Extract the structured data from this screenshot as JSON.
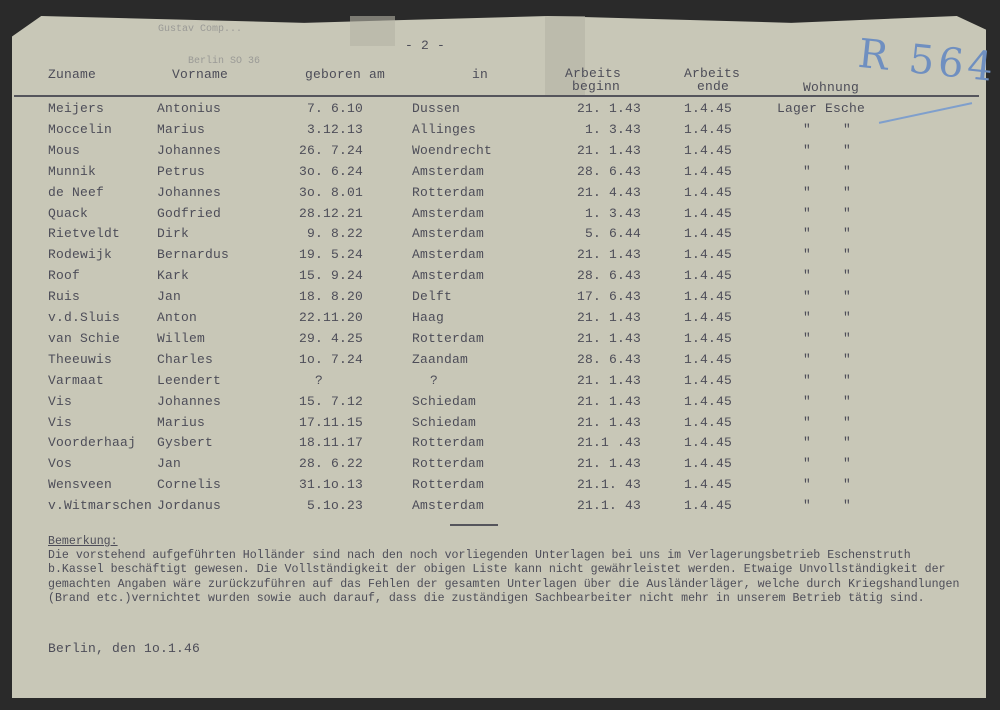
{
  "letterhead_stamp": {
    "line1": "Gustav Comp...",
    "line2": "Berlin SO 36"
  },
  "page_number": "- 2 -",
  "handwritten_ref": "R 564",
  "headers": {
    "surname": "Zuname",
    "firstname": "Vorname",
    "born": "geboren am",
    "in": "in",
    "work_begin_1": "Arbeits",
    "work_begin_2": "beginn",
    "work_end_1": "Arbeits",
    "work_end_2": "ende",
    "residence": "Wohnung"
  },
  "rows": [
    {
      "surname": "Meijers",
      "firstname": "Antonius",
      "born": "7. 6.10",
      "place": "Dussen",
      "begin": "21. 1.43",
      "end": "1.4.45",
      "residence": "Lager Esche"
    },
    {
      "surname": "Moccelin",
      "firstname": "Marius",
      "born": "3.12.13",
      "place": "Allinges",
      "begin": "1. 3.43",
      "end": "1.4.45",
      "residence": "\"    \""
    },
    {
      "surname": "Mous",
      "firstname": "Johannes",
      "born": "26. 7.24",
      "place": "Woendrecht",
      "begin": "21. 1.43",
      "end": "1.4.45",
      "residence": "\"    \""
    },
    {
      "surname": "Munnik",
      "firstname": "Petrus",
      "born": "3o. 6.24",
      "place": "Amsterdam",
      "begin": "28. 6.43",
      "end": "1.4.45",
      "residence": "\"    \""
    },
    {
      "surname": "de Neef",
      "firstname": "Johannes",
      "born": "3o. 8.01",
      "place": "Rotterdam",
      "begin": "21. 4.43",
      "end": "1.4.45",
      "residence": "\"    \""
    },
    {
      "surname": "Quack",
      "firstname": "Godfried",
      "born": "28.12.21",
      "place": "Amsterdam",
      "begin": "1. 3.43",
      "end": "1.4.45",
      "residence": "\"    \""
    },
    {
      "surname": "Rietveldt",
      "firstname": "Dirk",
      "born": "9. 8.22",
      "place": "Amsterdam",
      "begin": "5. 6.44",
      "end": "1.4.45",
      "residence": "\"    \""
    },
    {
      "surname": "Rodewijk",
      "firstname": "Bernardus",
      "born": "19. 5.24",
      "place": "Amsterdam",
      "begin": "21. 1.43",
      "end": "1.4.45",
      "residence": "\"    \""
    },
    {
      "surname": "Roof",
      "firstname": "Kark",
      "born": "15. 9.24",
      "place": "Amsterdam",
      "begin": "28. 6.43",
      "end": "1.4.45",
      "residence": "\"    \""
    },
    {
      "surname": "Ruis",
      "firstname": "Jan",
      "born": "18. 8.20",
      "place": "Delft",
      "begin": "17. 6.43",
      "end": "1.4.45",
      "residence": "\"    \""
    },
    {
      "surname": "v.d.Sluis",
      "firstname": "Anton",
      "born": "22.11.20",
      "place": "Haag",
      "begin": "21. 1.43",
      "end": "1.4.45",
      "residence": "\"    \""
    },
    {
      "surname": "van Schie",
      "firstname": "Willem",
      "born": "29. 4.25",
      "place": "Rotterdam",
      "begin": "21. 1.43",
      "end": "1.4.45",
      "residence": "\"    \""
    },
    {
      "surname": "Theeuwis",
      "firstname": "Charles",
      "born": "1o. 7.24",
      "place": "Zaandam",
      "begin": "28. 6.43",
      "end": "1.4.45",
      "residence": "\"    \""
    },
    {
      "surname": "Varmaat",
      "firstname": "Leendert",
      "born": "?",
      "place": "?",
      "begin": "21. 1.43",
      "end": "1.4.45",
      "residence": "\"    \""
    },
    {
      "surname": "Vis",
      "firstname": "Johannes",
      "born": "15. 7.12",
      "place": "Schiedam",
      "begin": "21. 1.43",
      "end": "1.4.45",
      "residence": "\"    \""
    },
    {
      "surname": "Vis",
      "firstname": "Marius",
      "born": "17.11.15",
      "place": "Schiedam",
      "begin": "21. 1.43",
      "end": "1.4.45",
      "residence": "\"    \""
    },
    {
      "surname": "Voorderhaaj",
      "firstname": "Gysbert",
      "born": "18.11.17",
      "place": "Rotterdam",
      "begin": "21.1 .43",
      "end": "1.4.45",
      "residence": "\"    \""
    },
    {
      "surname": "Vos",
      "firstname": "Jan",
      "born": "28. 6.22",
      "place": "Rotterdam",
      "begin": "21. 1.43",
      "end": "1.4.45",
      "residence": "\"    \""
    },
    {
      "surname": "Wensveen",
      "firstname": "Cornelis",
      "born": "31.1o.13",
      "place": "Rotterdam",
      "begin": "21.1. 43",
      "end": "1.4.45",
      "residence": "\"    \""
    },
    {
      "surname": "v.Witmarschen",
      "firstname": "Jordanus",
      "born": "5.1o.23",
      "place": "Amsterdam",
      "begin": "21.1. 43",
      "end": "1.4.45",
      "residence": "\"    \""
    }
  ],
  "remark": {
    "label": "Bemerkung:",
    "text": "Die vorstehend aufgeführten Holländer sind nach den noch vorliegenden Unterlagen bei uns im Verlagerungsbetrieb Eschenstruth b.Kassel beschäftigt gewesen. Die Vollständigkeit der obigen Liste kann nicht gewährleistet werden. Etwaige Unvollständigkeit der gemachten Angaben wäre zurückzuführen auf das Fehlen der gesamten Unterlagen über die Ausländerläger, welche durch Kriegshandlungen (Brand etc.)vernichtet wurden sowie auch darauf, dass die zuständigen Sachbearbeiter nicht mehr in unserem Betrieb tätig sind."
  },
  "place_date": "Berlin, den 1o.1.46"
}
